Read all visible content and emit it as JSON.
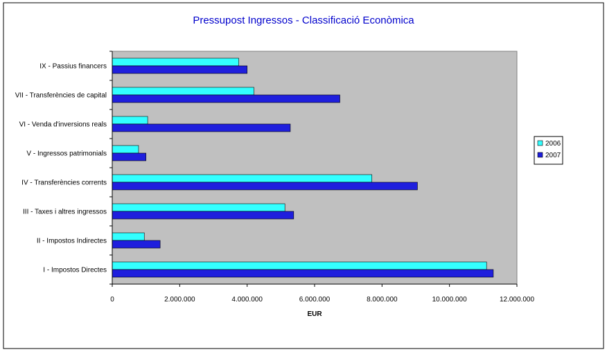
{
  "chart_data": {
    "type": "bar",
    "orientation": "horizontal",
    "title": "Pressupost Ingressos - Classificació Econòmica",
    "xlabel": "EUR",
    "ylabel": "",
    "xlim": [
      0,
      12000000
    ],
    "x_ticks": [
      0,
      2000000,
      4000000,
      6000000,
      8000000,
      10000000,
      12000000
    ],
    "x_tick_labels": [
      "0",
      "2.000.000",
      "4.000.000",
      "6.000.000",
      "8.000.000",
      "10.000.000",
      "12.000.000"
    ],
    "categories": [
      "I - Impostos Directes",
      "II - Impostos Indirectes",
      "III - Taxes i altres ingressos",
      "IV - Transferències corrents",
      "V - Ingressos patrimonials",
      "VI - Venda d'inversions reals",
      "VII - Transferències de capital",
      "IX - Passius financers"
    ],
    "series": [
      {
        "name": "2006",
        "color": "#33ffff",
        "values": [
          11100000,
          950000,
          5120000,
          7700000,
          780000,
          1050000,
          4200000,
          3750000
        ]
      },
      {
        "name": "2007",
        "color": "#1f1fdd",
        "values": [
          11300000,
          1420000,
          5380000,
          9050000,
          1000000,
          5280000,
          6750000,
          4000000
        ]
      }
    ],
    "legend_position": "right",
    "grid": false,
    "plot_background": "#c0c0c0"
  }
}
